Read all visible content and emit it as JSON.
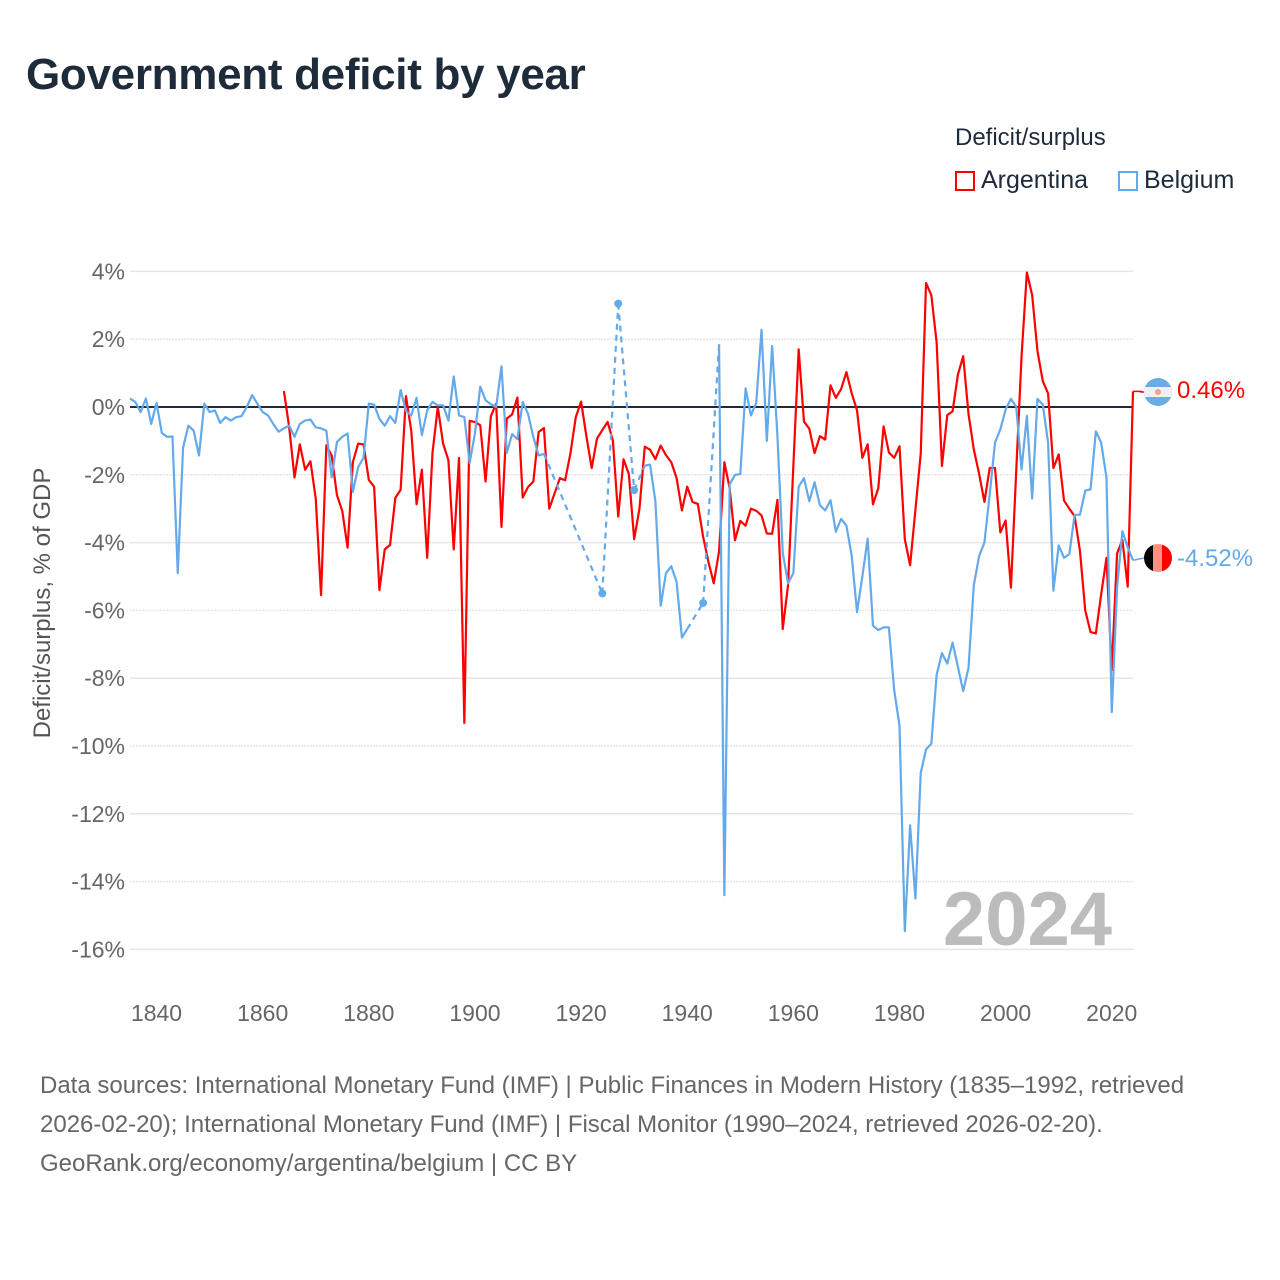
{
  "title": "Government deficit by year",
  "legend": {
    "title": "Deficit/surplus",
    "items": [
      {
        "label": "Argentina",
        "color": "#ff0000"
      },
      {
        "label": "Belgium",
        "color": "#64a9ea"
      }
    ]
  },
  "footer": {
    "sources": "Data sources: International Monetary Fund (IMF) | Public Finances in Modern History (1835–1992, retrieved 2026-02-20); International Monetary Fund (IMF) | Fiscal Monitor (1990–2024, retrieved 2026-02-20).",
    "credit": "GeoRank.org/economy/argentina/belgium | CC BY"
  },
  "chart_data": {
    "type": "line",
    "title": "Government deficit by year",
    "xlabel": "",
    "ylabel": "Deficit/surplus, % of GDP",
    "xlim": [
      1835,
      2024
    ],
    "ylim": [
      -16,
      4
    ],
    "xticks": [
      1840,
      1860,
      1880,
      1900,
      1920,
      1940,
      1960,
      1980,
      2000,
      2020
    ],
    "yticks": [
      4,
      2,
      0,
      -2,
      -4,
      -6,
      -8,
      -10,
      -12,
      -14,
      -16
    ],
    "ytick_labels": [
      "4%",
      "2%",
      "0%",
      "-2%",
      "-4%",
      "-6%",
      "-8%",
      "-10%",
      "-12%",
      "-14%",
      "-16%"
    ],
    "current_year": "2024",
    "grid": true,
    "legend_position": "top-right",
    "series": [
      {
        "name": "Argentina",
        "color": "#ff0000",
        "start_year": 1864,
        "end_label": "0.46%",
        "values": [
          0.47,
          -0.6,
          -2.08,
          -1.1,
          -1.85,
          -1.6,
          -2.7,
          -5.55,
          -1.13,
          -1.43,
          -2.6,
          -3.07,
          -4.15,
          -1.62,
          -1.08,
          -1.1,
          -2.15,
          -2.35,
          -5.4,
          -4.2,
          -4.07,
          -2.68,
          -2.44,
          0.32,
          -0.7,
          -2.87,
          -1.85,
          -4.45,
          -1.35,
          0,
          -1.08,
          -1.57,
          -4.2,
          -1.5,
          -9.32,
          -0.41,
          -0.44,
          -0.54,
          -2.2,
          -0.27,
          0.1,
          -3.54,
          -0.34,
          -0.22,
          0.28,
          -2.67,
          -2.36,
          -2.2,
          -0.74,
          -0.62,
          -3.0,
          -2.55,
          -2.1,
          -2.16,
          -1.36,
          -0.3,
          0.16,
          -0.86,
          -1.8,
          -0.93,
          -0.68,
          -0.44,
          -1.0,
          -3.23,
          -1.54,
          -1.98,
          -3.9,
          -3.0,
          -1.17,
          -1.26,
          -1.54,
          -1.14,
          -1.42,
          -1.63,
          -2.1,
          -3.05,
          -2.35,
          -2.8,
          -2.86,
          -3.83,
          -4.57,
          -5.2,
          -4.26,
          -1.63,
          -2.4,
          -3.93,
          -3.36,
          -3.5,
          -3.0,
          -3.06,
          -3.2,
          -3.73,
          -3.74,
          -2.74,
          -6.55,
          -5.25,
          -1.73,
          1.7,
          -0.43,
          -0.64,
          -1.36,
          -0.86,
          -0.96,
          0.64,
          0.27,
          0.53,
          1.03,
          0.4,
          -0.1,
          -1.5,
          -1.1,
          -2.87,
          -2.4,
          -0.57,
          -1.34,
          -1.5,
          -1.16,
          -3.9,
          -4.67,
          -3.03,
          -1.38,
          3.66,
          3.3,
          1.9,
          -1.74,
          -0.24,
          -0.13,
          0.95,
          1.5,
          -0.2,
          -1.25,
          -1.97,
          -2.8,
          -1.8,
          -1.8,
          -3.7,
          -3.35,
          -5.33,
          -1.87,
          1.5,
          3.97,
          3.3,
          1.65,
          0.76,
          0.4,
          -1.8,
          -1.4,
          -2.76,
          -3.0,
          -3.22,
          -4.24,
          -6.0,
          -6.64,
          -6.68,
          -5.53,
          -4.45,
          -7.76,
          -4.32,
          -3.92,
          -5.3,
          0.46
        ]
      },
      {
        "name": "Belgium",
        "color": "#64a9ea",
        "start_year": 1835,
        "end_label": "-4.52%",
        "values": [
          0.25,
          0.15,
          -0.15,
          0.25,
          -0.5,
          0.12,
          -0.77,
          -0.88,
          -0.87,
          -4.9,
          -1.2,
          -0.55,
          -0.7,
          -1.43,
          0.1,
          -0.15,
          -0.1,
          -0.47,
          -0.3,
          -0.4,
          -0.3,
          -0.27,
          0,
          0.35,
          0.1,
          -0.15,
          -0.25,
          -0.5,
          -0.73,
          -0.63,
          -0.55,
          -0.88,
          -0.5,
          -0.4,
          -0.37,
          -0.6,
          -0.63,
          -0.7,
          -2.08,
          -1.03,
          -0.88,
          -0.78,
          -2.5,
          -1.77,
          -1.5,
          0.1,
          0.07,
          -0.35,
          -0.55,
          -0.27,
          -0.47,
          0.5,
          -0.12,
          -0.25,
          0.27,
          -0.83,
          -0.1,
          0.15,
          0.05,
          0.05,
          -0.4,
          0.9,
          -0.25,
          -0.3,
          -1.65,
          -0.78,
          0.6,
          0.2,
          0.08,
          0,
          1.2,
          -1.35,
          -0.8,
          -0.95,
          0.15,
          -0.2,
          -0.88,
          -1.43,
          -1.38,
          null,
          null,
          null,
          null,
          null,
          null,
          null,
          null,
          null,
          null,
          -5.5,
          null,
          null,
          3.05,
          null,
          null,
          -2.45,
          null,
          -1.73,
          -1.7,
          -2.78,
          -5.86,
          -4.9,
          -4.7,
          -5.16,
          -6.8,
          -6.55,
          null,
          null,
          -5.78,
          null,
          null,
          1.85,
          -14.4,
          -2.28,
          -2.0,
          -1.98,
          0.55,
          -0.25,
          0.12,
          2.28,
          -1.0,
          1.8,
          -0.86,
          -4.3,
          -5.2,
          -4.9,
          -2.35,
          -2.1,
          -2.78,
          -2.22,
          -2.9,
          -3.05,
          -2.75,
          -3.68,
          -3.3,
          -3.5,
          -4.4,
          -6.05,
          -5.0,
          -3.88,
          -6.45,
          -6.58,
          -6.5,
          -6.5,
          -8.35,
          -9.4,
          -15.46,
          -12.34,
          -14.5,
          -10.8,
          -10.1,
          -9.93,
          -7.9,
          -7.26,
          -7.57,
          -6.95,
          -7.66,
          -8.38,
          -7.7,
          -5.26,
          -4.4,
          -4.0,
          -2.57,
          -1.05,
          -0.66,
          -0.07,
          0.24,
          0,
          -1.84,
          -0.26,
          -2.7,
          0.24,
          0.07,
          -1.05,
          -5.42,
          -4.08,
          -4.45,
          -4.34,
          -3.18,
          -3.18,
          -2.47,
          -2.43,
          -0.72,
          -1.05,
          -2.08,
          -9.0,
          -5.33,
          -3.66,
          -4.14,
          -4.52
        ]
      }
    ]
  }
}
